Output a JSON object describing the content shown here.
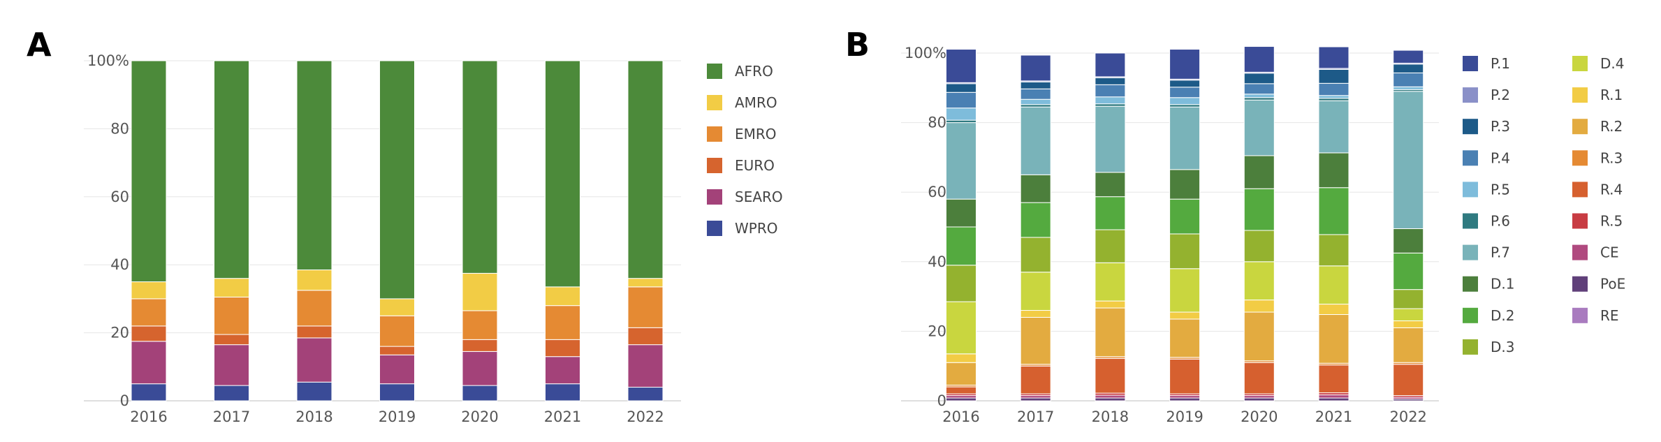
{
  "chart_data": [
    {
      "type": "bar",
      "stacked": true,
      "panel": "A",
      "categories": [
        "2016",
        "2017",
        "2018",
        "2019",
        "2020",
        "2021",
        "2022"
      ],
      "yticks": [
        "0",
        "20",
        "40",
        "60",
        "80",
        "100%"
      ],
      "ylim": [
        0,
        100
      ],
      "grid": true,
      "legend_position": "right",
      "series": [
        {
          "name": "WPRO",
          "color": "#3a4b97",
          "values": [
            5,
            4.5,
            5.5,
            5,
            4.5,
            5,
            4
          ]
        },
        {
          "name": "SEARO",
          "color": "#a34279",
          "values": [
            12.5,
            12,
            13,
            8.5,
            10,
            8,
            12.5
          ]
        },
        {
          "name": "EURO",
          "color": "#d6642e",
          "values": [
            4.5,
            3,
            3.5,
            2.5,
            3.5,
            5,
            5
          ]
        },
        {
          "name": "EMRO",
          "color": "#e58a33",
          "values": [
            8,
            11,
            10.5,
            9,
            8.5,
            10,
            12
          ]
        },
        {
          "name": "AMRO",
          "color": "#f2cc45",
          "values": [
            5,
            5.5,
            6,
            5,
            11,
            5.5,
            2.5
          ]
        },
        {
          "name": "AFRO",
          "color": "#4c8a3a",
          "values": [
            65,
            64,
            61.5,
            70,
            62.5,
            66.5,
            64
          ]
        }
      ]
    },
    {
      "type": "bar",
      "stacked": true,
      "panel": "B",
      "categories": [
        "2016",
        "2017",
        "2018",
        "2019",
        "2020",
        "2021",
        "2022"
      ],
      "yticks": [
        "0",
        "20",
        "40",
        "60",
        "80",
        "100%"
      ],
      "ylim": [
        0,
        100
      ],
      "grid": true,
      "legend_position": "right",
      "series": [
        {
          "name": "RE",
          "color": "#a97bbf",
          "values": [
            0,
            0,
            0,
            0,
            0,
            0,
            0
          ]
        },
        {
          "name": "PoE",
          "color": "#60407a",
          "values": [
            0.8,
            0.8,
            0.8,
            0.8,
            0.8,
            0.8,
            0.5
          ]
        },
        {
          "name": "CE",
          "color": "#b04a7f",
          "values": [
            0.7,
            0.7,
            0.8,
            0.7,
            0.7,
            0.9,
            0.5
          ]
        },
        {
          "name": "R.5",
          "color": "#c83c43",
          "values": [
            0.5,
            0.5,
            0.6,
            0.5,
            0.5,
            0.6,
            0.5
          ]
        },
        {
          "name": "R.4",
          "color": "#d6602f",
          "values": [
            2,
            8,
            10,
            10,
            9,
            8,
            9
          ]
        },
        {
          "name": "R.3",
          "color": "#e58a33",
          "values": [
            0.5,
            0.5,
            0.5,
            0.5,
            0.5,
            0.5,
            0.5
          ]
        },
        {
          "name": "R.2",
          "color": "#e3ab40",
          "values": [
            6.5,
            13.5,
            14,
            11,
            14,
            14,
            10
          ]
        },
        {
          "name": "R.1",
          "color": "#f2cc45",
          "values": [
            2.5,
            2,
            2,
            2,
            3.5,
            3,
            2
          ]
        },
        {
          "name": "D.4",
          "color": "#c9d63f",
          "values": [
            15,
            11,
            11,
            12.5,
            11,
            11,
            3.5
          ]
        },
        {
          "name": "D.3",
          "color": "#94b22f",
          "values": [
            10.5,
            10,
            9.5,
            10,
            9,
            9,
            5.5
          ]
        },
        {
          "name": "D.2",
          "color": "#54aa3f",
          "values": [
            11,
            10,
            9.5,
            10,
            12,
            13.5,
            10.5
          ]
        },
        {
          "name": "D.1",
          "color": "#4c7f3c",
          "values": [
            8,
            8,
            7,
            8.5,
            9.5,
            10,
            7
          ]
        },
        {
          "name": "P.7",
          "color": "#79b3b9",
          "values": [
            22,
            19.5,
            19,
            18,
            16,
            15,
            39.5
          ]
        },
        {
          "name": "P.6",
          "color": "#2f7a80",
          "values": [
            0.7,
            0.7,
            0.7,
            0.7,
            0.7,
            0.7,
            0.5
          ]
        },
        {
          "name": "P.5",
          "color": "#7ebcdb",
          "values": [
            3.5,
            1.5,
            2,
            2,
            1,
            0.8,
            0.8
          ]
        },
        {
          "name": "P.4",
          "color": "#4a80b3",
          "values": [
            4.5,
            3,
            3.5,
            3,
            3,
            3.5,
            4
          ]
        },
        {
          "name": "P.3",
          "color": "#1d5a88",
          "values": [
            2.5,
            2,
            2,
            2,
            3,
            4,
            2.5
          ]
        },
        {
          "name": "P.2",
          "color": "#8a90c8",
          "values": [
            0.3,
            0.3,
            0.3,
            0.3,
            0.3,
            0.3,
            0.3
          ]
        },
        {
          "name": "P.1",
          "color": "#3a4b97",
          "values": [
            9.6,
            7.4,
            6.8,
            8.6,
            7.4,
            6.2,
            3.7
          ]
        }
      ]
    }
  ],
  "panels": [
    {
      "letter": "A",
      "legend_order": [
        "AFRO",
        "AMRO",
        "EMRO",
        "EURO",
        "SEARO",
        "WPRO"
      ]
    },
    {
      "letter": "B",
      "legend_columns": [
        [
          "P.1",
          "P.2",
          "P.3",
          "P.4",
          "P.5",
          "P.6",
          "P.7",
          "D.1",
          "D.2",
          "D.3"
        ],
        [
          "D.4",
          "R.1",
          "R.2",
          "R.3",
          "R.4",
          "R.5",
          "CE",
          "PoE",
          "RE"
        ]
      ]
    }
  ]
}
